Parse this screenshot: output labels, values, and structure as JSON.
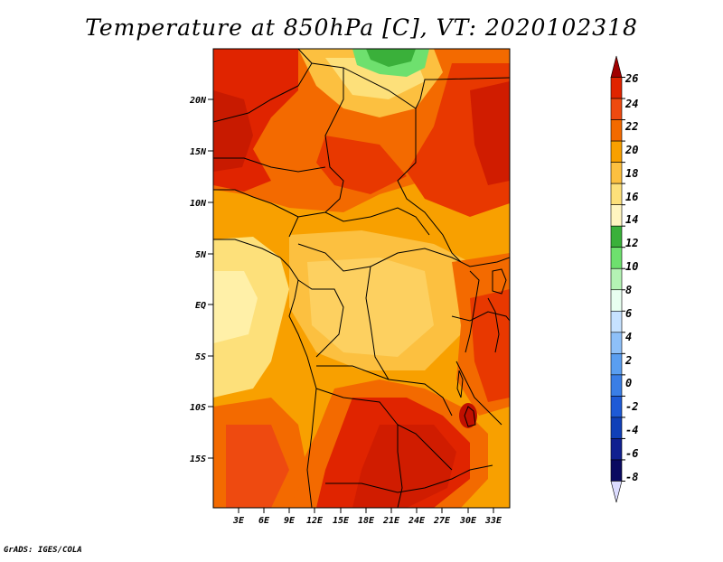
{
  "title": "Temperature at 850hPa [C], VT: 2020102318",
  "credit": "GrADS: IGES/COLA",
  "map": {
    "lat_labels": [
      "20N",
      "15N",
      "10N",
      "5N",
      "EQ",
      "5S",
      "10S",
      "15S"
    ],
    "lon_labels": [
      "3E",
      "6E",
      "9E",
      "12E",
      "15E",
      "18E",
      "21E",
      "24E",
      "27E",
      "30E",
      "33E"
    ]
  },
  "colorbar": {
    "labels": [
      "26",
      "24",
      "22",
      "20",
      "18",
      "16",
      "14",
      "12",
      "10",
      "8",
      "6",
      "4",
      "2",
      "0",
      "-2",
      "-4",
      "-6",
      "-8"
    ],
    "colors": [
      "#a00000",
      "#e02400",
      "#ee4a10",
      "#f36a00",
      "#f8a000",
      "#fcc040",
      "#fde07a",
      "#fff5c0",
      "#3ab03a",
      "#6ee06e",
      "#b4f3b4",
      "#e8fff0",
      "#c6e2ff",
      "#8ec0f8",
      "#5a9ef0",
      "#3a7ee6",
      "#1e5ad6",
      "#1040b8",
      "#102090",
      "#0a0a60",
      "#dcdcff"
    ]
  }
}
